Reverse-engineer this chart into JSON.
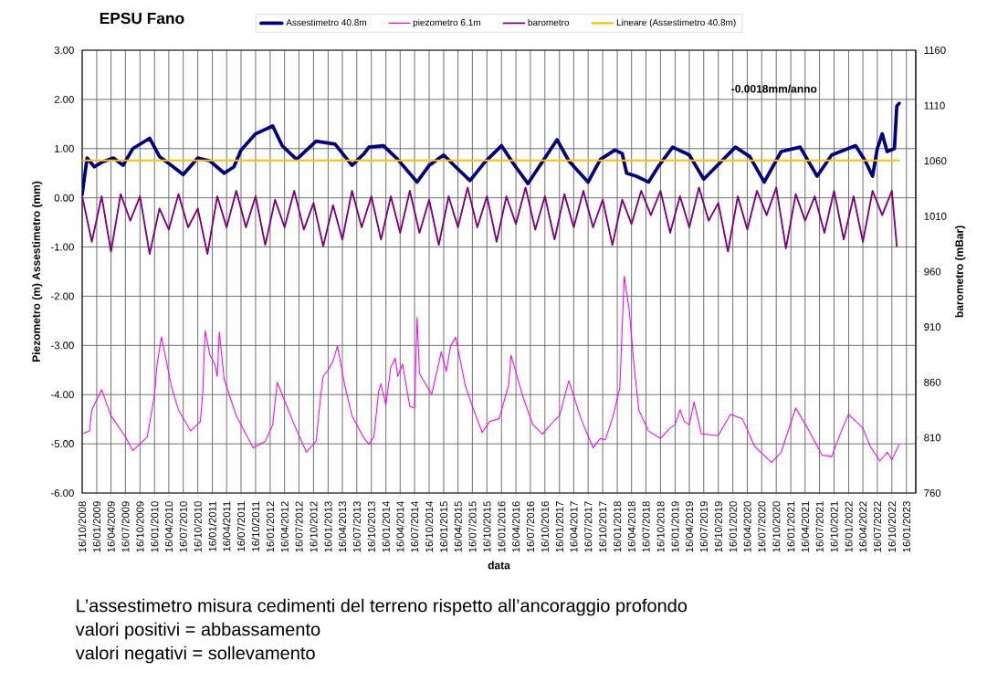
{
  "chart_data": {
    "type": "line",
    "title": "EPSU Fano",
    "xlabel": "data",
    "ylabel": "Piezometro (m) Assestimetro (mm)",
    "y2label": "barometro (mBar)",
    "legend": "top",
    "grid": true,
    "xlim": [
      "2008-10-16",
      "2023-03-16"
    ],
    "ylim": [
      -6,
      3
    ],
    "y2lim": [
      760,
      1160
    ],
    "yticks": [
      {
        "value": -6,
        "label": "-6.00"
      },
      {
        "value": -5,
        "label": "-5.00"
      },
      {
        "value": -4,
        "label": "-4.00"
      },
      {
        "value": -3,
        "label": "-3.00"
      },
      {
        "value": -2,
        "label": "-2.00"
      },
      {
        "value": -1,
        "label": "-1.00"
      },
      {
        "value": 0,
        "label": "0.00"
      },
      {
        "value": 1,
        "label": "1.00"
      },
      {
        "value": 2,
        "label": "2.00"
      },
      {
        "value": 3,
        "label": "3.00"
      }
    ],
    "y2ticks": [
      760,
      810,
      860,
      910,
      960,
      1010,
      1060,
      1110,
      1160
    ],
    "xticks": [
      {
        "value": "2008-10-16",
        "label": "16/10/2008"
      },
      {
        "value": "2009-01-16",
        "label": "16/01/2009"
      },
      {
        "value": "2009-04-16",
        "label": "16/04/2009"
      },
      {
        "value": "2009-07-16",
        "label": "16/07/2009"
      },
      {
        "value": "2009-10-16",
        "label": "16/10/2009"
      },
      {
        "value": "2010-01-16",
        "label": "16/01/2010"
      },
      {
        "value": "2010-04-16",
        "label": "16/04/2010"
      },
      {
        "value": "2010-07-16",
        "label": "16/07/2010"
      },
      {
        "value": "2010-10-16",
        "label": "16/10/2010"
      },
      {
        "value": "2011-01-16",
        "label": "16/01/2011"
      },
      {
        "value": "2011-04-16",
        "label": "16/04/2011"
      },
      {
        "value": "2011-07-16",
        "label": "16/07/2011"
      },
      {
        "value": "2011-10-16",
        "label": "16/10/2011"
      },
      {
        "value": "2012-01-16",
        "label": "16/01/2012"
      },
      {
        "value": "2012-04-16",
        "label": "16/04/2012"
      },
      {
        "value": "2012-07-16",
        "label": "16/07/2012"
      },
      {
        "value": "2012-10-16",
        "label": "16/10/2012"
      },
      {
        "value": "2013-01-16",
        "label": "16/01/2013"
      },
      {
        "value": "2013-04-16",
        "label": "16/04/2013"
      },
      {
        "value": "2013-07-16",
        "label": "16/07/2013"
      },
      {
        "value": "2013-10-16",
        "label": "16/10/2013"
      },
      {
        "value": "2014-01-16",
        "label": "16/01/2014"
      },
      {
        "value": "2014-04-16",
        "label": "16/04/2014"
      },
      {
        "value": "2014-07-16",
        "label": "16/07/2014"
      },
      {
        "value": "2014-10-16",
        "label": "16/10/2014"
      },
      {
        "value": "2015-01-16",
        "label": "16/01/2015"
      },
      {
        "value": "2015-04-16",
        "label": "16/04/2015"
      },
      {
        "value": "2015-07-16",
        "label": "16/07/2015"
      },
      {
        "value": "2015-10-16",
        "label": "16/10/2015"
      },
      {
        "value": "2016-01-16",
        "label": "16/01/2016"
      },
      {
        "value": "2016-04-16",
        "label": "16/04/2016"
      },
      {
        "value": "2016-07-16",
        "label": "16/07/2016"
      },
      {
        "value": "2016-10-16",
        "label": "16/10/2016"
      },
      {
        "value": "2017-01-16",
        "label": "16/01/2017"
      },
      {
        "value": "2017-04-16",
        "label": "16/04/2017"
      },
      {
        "value": "2017-07-16",
        "label": "16/07/2017"
      },
      {
        "value": "2017-10-16",
        "label": "16/10/2017"
      },
      {
        "value": "2018-01-16",
        "label": "16/01/2018"
      },
      {
        "value": "2018-04-16",
        "label": "16/04/2018"
      },
      {
        "value": "2018-07-16",
        "label": "16/07/2018"
      },
      {
        "value": "2018-10-16",
        "label": "16/10/2018"
      },
      {
        "value": "2019-01-16",
        "label": "16/01/2019"
      },
      {
        "value": "2019-04-16",
        "label": "16/04/2019"
      },
      {
        "value": "2019-07-16",
        "label": "16/07/2019"
      },
      {
        "value": "2019-10-16",
        "label": "16/10/2019"
      },
      {
        "value": "2020-01-16",
        "label": "16/01/2020"
      },
      {
        "value": "2020-04-16",
        "label": "16/04/2020"
      },
      {
        "value": "2020-07-16",
        "label": "16/07/2020"
      },
      {
        "value": "2020-10-16",
        "label": "16/10/2020"
      },
      {
        "value": "2021-01-16",
        "label": "16/01/2021"
      },
      {
        "value": "2021-04-16",
        "label": "16/04/2021"
      },
      {
        "value": "2021-07-16",
        "label": "16/07/2021"
      },
      {
        "value": "2021-10-16",
        "label": "16/10/2021"
      },
      {
        "value": "2022-01-16",
        "label": "16/01/2022"
      },
      {
        "value": "2022-04-16",
        "label": "16/04/2022"
      },
      {
        "value": "2022-07-16",
        "label": "16/07/2022"
      },
      {
        "value": "2022-10-16",
        "label": "16/10/2022"
      },
      {
        "value": "2023-01-16",
        "label": "16/01/2023"
      }
    ],
    "series": [
      {
        "name": "Assestimetro 40.8m",
        "color": "#000080",
        "x": [
          "2008-10-16",
          "2008-11-16",
          "2009-01-01",
          "2009-02-16",
          "2009-05-01",
          "2009-07-01",
          "2009-09-01",
          "2009-12-16",
          "2010-02-16",
          "2010-05-01",
          "2010-07-16",
          "2010-10-16",
          "2011-01-01",
          "2011-04-01",
          "2011-06-01",
          "2011-07-16",
          "2011-10-16",
          "2012-02-01",
          "2012-04-01",
          "2012-07-01",
          "2012-11-01",
          "2013-03-01",
          "2013-06-16",
          "2013-09-01",
          "2013-10-01",
          "2014-01-01",
          "2014-04-01",
          "2014-08-01",
          "2014-10-16",
          "2015-01-16",
          "2015-04-01",
          "2015-07-01",
          "2015-10-01",
          "2016-01-16",
          "2016-04-01",
          "2016-07-01",
          "2016-10-16",
          "2017-01-01",
          "2017-03-16",
          "2017-07-16",
          "2017-10-01",
          "2018-01-01",
          "2018-02-16",
          "2018-03-16",
          "2018-05-16",
          "2018-08-01",
          "2018-10-01",
          "2019-01-01",
          "2019-04-16",
          "2019-07-16",
          "2019-10-01",
          "2020-02-01",
          "2020-05-01",
          "2020-08-01",
          "2020-11-16",
          "2021-03-16",
          "2021-07-01",
          "2021-10-01",
          "2022-03-01",
          "2022-05-01",
          "2022-06-16",
          "2022-07-16",
          "2022-08-16",
          "2022-09-16",
          "2022-11-01",
          "2022-11-16",
          "2022-12-01"
        ],
        "values": [
          0.07,
          0.81,
          0.63,
          0.72,
          0.81,
          0.66,
          1.0,
          1.21,
          0.84,
          0.66,
          0.47,
          0.81,
          0.75,
          0.5,
          0.63,
          0.97,
          1.3,
          1.46,
          1.06,
          0.78,
          1.15,
          1.09,
          0.66,
          0.9,
          1.03,
          1.06,
          0.78,
          0.32,
          0.66,
          0.87,
          0.63,
          0.35,
          0.72,
          1.06,
          0.69,
          0.29,
          0.81,
          1.18,
          0.75,
          0.32,
          0.78,
          0.97,
          0.9,
          0.5,
          0.44,
          0.32,
          0.63,
          1.03,
          0.87,
          0.38,
          0.63,
          1.03,
          0.84,
          0.32,
          0.94,
          1.03,
          0.44,
          0.87,
          1.06,
          0.75,
          0.44,
          1.0,
          1.3,
          0.94,
          1.0,
          1.86,
          1.92
        ]
      },
      {
        "name": "piezometro 6.1m",
        "color": "#ff00ff",
        "x": [
          "2008-10-16",
          "2008-12-01",
          "2008-12-16",
          "2009-02-16",
          "2009-04-16",
          "2009-07-16",
          "2009-09-01",
          "2009-12-01",
          "2010-01-16",
          "2010-02-01",
          "2010-03-01",
          "2010-05-01",
          "2010-06-16",
          "2010-09-01",
          "2010-11-01",
          "2010-11-16",
          "2010-12-01",
          "2011-01-01",
          "2011-02-01",
          "2011-02-16",
          "2011-03-01",
          "2011-04-01",
          "2011-06-16",
          "2011-10-01",
          "2011-12-16",
          "2012-02-01",
          "2012-03-01",
          "2012-04-16",
          "2012-06-16",
          "2012-09-01",
          "2012-11-01",
          "2012-12-01",
          "2012-12-16",
          "2013-01-16",
          "2013-02-16",
          "2013-03-16",
          "2013-05-01",
          "2013-06-16",
          "2013-09-01",
          "2013-10-01",
          "2013-11-01",
          "2013-12-01",
          "2013-12-16",
          "2014-01-16",
          "2014-02-16",
          "2014-03-16",
          "2014-04-01",
          "2014-05-01",
          "2014-06-16",
          "2014-07-16",
          "2014-08-01",
          "2014-08-16",
          "2014-11-01",
          "2015-01-01",
          "2015-02-01",
          "2015-03-01",
          "2015-04-01",
          "2015-06-01",
          "2015-07-16",
          "2015-09-16",
          "2015-11-01",
          "2016-01-01",
          "2016-03-01",
          "2016-03-16",
          "2016-06-01",
          "2016-08-01",
          "2016-10-01",
          "2016-12-16",
          "2017-01-16",
          "2017-03-16",
          "2017-06-01",
          "2017-08-16",
          "2017-10-01",
          "2017-11-01",
          "2017-12-16",
          "2018-02-01",
          "2018-03-01",
          "2018-04-01",
          "2018-05-01",
          "2018-06-01",
          "2018-08-01",
          "2018-10-16",
          "2018-12-16",
          "2019-01-16",
          "2019-02-16",
          "2019-03-16",
          "2019-04-16",
          "2019-05-16",
          "2019-07-01",
          "2019-10-16",
          "2020-01-01",
          "2020-03-16",
          "2020-06-01",
          "2020-09-16",
          "2020-11-16",
          "2021-02-16",
          "2021-05-01",
          "2021-08-01",
          "2021-10-01",
          "2021-12-01",
          "2022-01-16",
          "2022-04-16",
          "2022-06-01",
          "2022-08-01",
          "2022-09-16",
          "2022-10-16",
          "2022-12-01"
        ],
        "values": [
          -4.8,
          -4.74,
          -4.31,
          -3.9,
          -4.43,
          -4.86,
          -5.14,
          -4.86,
          -4.0,
          -3.38,
          -2.83,
          -3.81,
          -4.31,
          -4.74,
          -4.55,
          -4.0,
          -2.7,
          -3.2,
          -3.38,
          -3.63,
          -2.73,
          -3.69,
          -4.43,
          -5.08,
          -4.95,
          -4.61,
          -3.75,
          -4.12,
          -4.61,
          -5.17,
          -4.95,
          -4.0,
          -3.63,
          -3.5,
          -3.32,
          -3.01,
          -3.81,
          -4.43,
          -4.89,
          -5.01,
          -4.86,
          -3.94,
          -3.78,
          -4.21,
          -3.44,
          -3.26,
          -3.63,
          -3.38,
          -4.24,
          -4.27,
          -2.43,
          -3.57,
          -4.0,
          -3.13,
          -3.53,
          -3.01,
          -2.83,
          -3.81,
          -4.24,
          -4.77,
          -4.55,
          -4.49,
          -3.81,
          -3.2,
          -4.06,
          -4.61,
          -4.8,
          -4.52,
          -4.43,
          -3.72,
          -4.49,
          -5.08,
          -4.89,
          -4.92,
          -4.49,
          -3.87,
          -1.59,
          -2.27,
          -3.38,
          -4.31,
          -4.74,
          -4.89,
          -4.68,
          -4.61,
          -4.31,
          -4.55,
          -4.61,
          -4.15,
          -4.8,
          -4.83,
          -4.4,
          -4.49,
          -5.05,
          -5.38,
          -5.17,
          -4.27,
          -4.68,
          -5.23,
          -5.26,
          -4.74,
          -4.4,
          -4.68,
          -5.05,
          -5.35,
          -5.17,
          -5.32,
          -5.01
        ]
      },
      {
        "name": "barometro",
        "color": "#800080",
        "axis": "y2",
        "x": [
          "2008-10-16",
          "2008-12-16",
          "2009-02-16",
          "2009-04-16",
          "2009-06-16",
          "2009-08-16",
          "2009-10-16",
          "2009-12-16",
          "2010-02-16",
          "2010-04-16",
          "2010-06-16",
          "2010-08-16",
          "2010-10-16",
          "2010-12-16",
          "2011-02-16",
          "2011-04-16",
          "2011-06-16",
          "2011-08-16",
          "2011-10-16",
          "2011-12-16",
          "2012-02-16",
          "2012-04-16",
          "2012-06-16",
          "2012-08-16",
          "2012-10-16",
          "2012-12-16",
          "2013-02-16",
          "2013-04-16",
          "2013-06-16",
          "2013-08-16",
          "2013-10-16",
          "2013-12-16",
          "2014-02-16",
          "2014-04-16",
          "2014-06-16",
          "2014-08-16",
          "2014-10-16",
          "2014-12-16",
          "2015-02-16",
          "2015-04-16",
          "2015-06-16",
          "2015-08-16",
          "2015-10-16",
          "2015-12-16",
          "2016-02-16",
          "2016-04-16",
          "2016-06-16",
          "2016-08-16",
          "2016-10-16",
          "2016-12-16",
          "2017-02-16",
          "2017-04-16",
          "2017-06-16",
          "2017-08-16",
          "2017-10-16",
          "2017-12-16",
          "2018-02-16",
          "2018-04-16",
          "2018-06-16",
          "2018-08-16",
          "2018-10-16",
          "2018-12-16",
          "2019-02-16",
          "2019-04-16",
          "2019-06-16",
          "2019-08-16",
          "2019-10-16",
          "2019-12-16",
          "2020-02-16",
          "2020-04-16",
          "2020-06-16",
          "2020-08-16",
          "2020-10-16",
          "2020-12-16",
          "2021-02-16",
          "2021-04-16",
          "2021-06-16",
          "2021-08-16",
          "2021-10-16",
          "2021-12-16",
          "2022-02-16",
          "2022-04-16",
          "2022-06-16",
          "2022-08-16",
          "2022-10-16",
          "2022-11-16"
        ],
        "values": [
          1028,
          987,
          1028,
          978,
          1030,
          1006,
          1028,
          976,
          1017,
          998,
          1030,
          1000,
          1017,
          976,
          1028,
          1000,
          1033,
          1000,
          1028,
          984,
          1025,
          1000,
          1033,
          998,
          1022,
          983,
          1020,
          989,
          1033,
          1000,
          1028,
          989,
          1028,
          995,
          1033,
          995,
          1025,
          984,
          1028,
          1000,
          1036,
          1000,
          1028,
          987,
          1028,
          1003,
          1036,
          998,
          1028,
          989,
          1030,
          1000,
          1033,
          1000,
          1025,
          984,
          1025,
          1003,
          1033,
          1011,
          1033,
          995,
          1028,
          1000,
          1036,
          1006,
          1022,
          978,
          1028,
          998,
          1033,
          1011,
          1036,
          981,
          1030,
          1006,
          1028,
          995,
          1033,
          989,
          1028,
          987,
          1033,
          1011,
          1033,
          983
        ]
      },
      {
        "name": "Lineare (Assestimetro 40.8m)",
        "color": "#ffc000",
        "type": "line",
        "x": [
          "2008-10-16",
          "2022-12-01"
        ],
        "values": [
          0.76,
          0.76
        ]
      }
    ],
    "annotations": [
      "-0.0018mm/anno",
      "L’assestimetro misura cedimenti del terreno rispetto all’ancoraggio profondo",
      "valori positivi = abbassamento",
      "valori negativi = sollevamento"
    ]
  }
}
